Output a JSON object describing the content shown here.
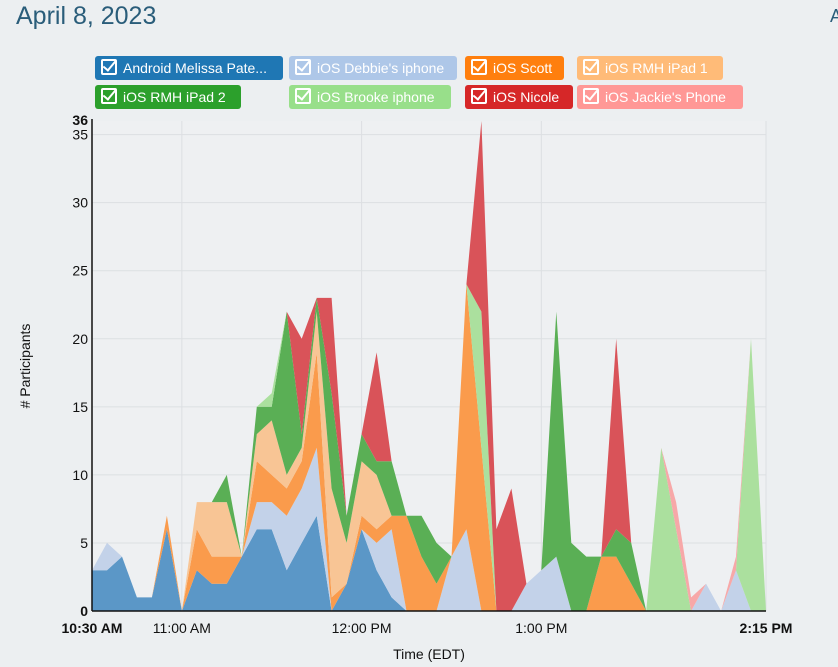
{
  "page": {
    "title": "April 8, 2023",
    "edge_letter": "A"
  },
  "chart_data": {
    "type": "area",
    "stacked": true,
    "xlabel": "Time (EDT)",
    "ylabel": "# Participants",
    "ylim": [
      0,
      36
    ],
    "y_ticks": [
      0,
      5,
      10,
      15,
      20,
      25,
      30,
      35
    ],
    "y_max_label": "36",
    "xlim": [
      "10:30 AM",
      "2:15 PM"
    ],
    "x_ticks": [
      {
        "t": 0,
        "label": "10:30 AM",
        "bold": true
      },
      {
        "t": 30,
        "label": "11:00 AM",
        "bold": false
      },
      {
        "t": 90,
        "label": "12:00 PM",
        "bold": false
      },
      {
        "t": 150,
        "label": "1:00 PM",
        "bold": false
      },
      {
        "t": 225,
        "label": "2:15 PM",
        "bold": true
      }
    ],
    "x_minutes": [
      0,
      5,
      10,
      15,
      20,
      25,
      30,
      35,
      40,
      45,
      50,
      55,
      60,
      65,
      70,
      75,
      80,
      85,
      90,
      95,
      100,
      105,
      110,
      115,
      120,
      125,
      130,
      135,
      140,
      145,
      150,
      155,
      160,
      165,
      170,
      175,
      180,
      185,
      190,
      195,
      200,
      205,
      210,
      215,
      220,
      225
    ],
    "series": [
      {
        "name": "Android Melissa Pate...",
        "color": "#5b97c7",
        "values": [
          3,
          3,
          4,
          1,
          1,
          6,
          0,
          3,
          2,
          2,
          4,
          6,
          6,
          3,
          5,
          7,
          0,
          2,
          6,
          3,
          1,
          0,
          0,
          0,
          0,
          0,
          0,
          0,
          0,
          0,
          0,
          0,
          0,
          0,
          0,
          0,
          0,
          0,
          0,
          0,
          0,
          0,
          0,
          0,
          0,
          0
        ]
      },
      {
        "name": "iOS Debbie's iphone",
        "color": "#c3d2e9",
        "values": [
          0,
          2,
          0,
          0,
          0,
          0,
          0,
          0,
          0,
          0,
          0,
          2,
          2,
          4,
          4,
          5,
          0,
          0,
          0,
          2,
          5,
          0,
          0,
          0,
          4,
          6,
          0,
          0,
          0,
          2,
          3,
          4,
          0,
          0,
          0,
          0,
          0,
          0,
          0,
          0,
          0,
          2,
          0,
          3,
          0,
          0
        ]
      },
      {
        "name": "iOS Scott",
        "color": "#fa9b4c",
        "values": [
          0,
          0,
          0,
          0,
          0,
          1,
          0,
          3,
          2,
          2,
          0,
          3,
          2,
          2,
          2,
          7,
          1,
          0,
          1,
          1,
          1,
          7,
          4,
          2,
          0,
          18,
          12,
          0,
          0,
          0,
          0,
          0,
          0,
          0,
          4,
          4,
          2,
          0,
          0,
          0,
          0,
          0,
          0,
          0,
          0,
          0
        ]
      },
      {
        "name": "iOS RMH iPad 1",
        "color": "#f8c595",
        "values": [
          0,
          0,
          0,
          0,
          0,
          0,
          0,
          2,
          4,
          4,
          0,
          2,
          4,
          1,
          1,
          3,
          8,
          3,
          4,
          4,
          0,
          0,
          0,
          0,
          0,
          0,
          0,
          0,
          0,
          0,
          0,
          0,
          0,
          0,
          0,
          0,
          0,
          0,
          0,
          0,
          0,
          0,
          0,
          0,
          0,
          0
        ]
      },
      {
        "name": "iOS RMH iPad 2",
        "color": "#5aaf55",
        "values": [
          0,
          0,
          0,
          0,
          0,
          0,
          0,
          0,
          0,
          2,
          0,
          2,
          1,
          12,
          1,
          1,
          7,
          2,
          2,
          1,
          4,
          0,
          3,
          3,
          0,
          0,
          0,
          0,
          0,
          0,
          0,
          18,
          5,
          4,
          0,
          2,
          3,
          0,
          0,
          0,
          0,
          0,
          0,
          0,
          0,
          0
        ]
      },
      {
        "name": "iOS Brooke iphone",
        "color": "#abe09e",
        "values": [
          0,
          0,
          0,
          0,
          0,
          0,
          0,
          0,
          0,
          0,
          0,
          0,
          1,
          0,
          0,
          0,
          0,
          0,
          0,
          0,
          0,
          0,
          0,
          0,
          0,
          0,
          10,
          0,
          0,
          0,
          0,
          0,
          0,
          0,
          0,
          0,
          0,
          0,
          12,
          6,
          0,
          0,
          0,
          0,
          20,
          0
        ]
      },
      {
        "name": "iOS Nicole",
        "color": "#d95359",
        "values": [
          0,
          0,
          0,
          0,
          0,
          0,
          0,
          0,
          0,
          0,
          0,
          0,
          0,
          0,
          7,
          0,
          7,
          0,
          0,
          8,
          0,
          0,
          0,
          0,
          0,
          0,
          14,
          6,
          9,
          0,
          0,
          0,
          0,
          0,
          0,
          14,
          0,
          0,
          0,
          0,
          0,
          0,
          0,
          0,
          0,
          0
        ]
      },
      {
        "name": "iOS Jackie's Phone",
        "color": "#f7a8a8",
        "values": [
          0,
          0,
          0,
          0,
          0,
          0,
          0,
          0,
          0,
          0,
          0,
          0,
          0,
          0,
          0,
          0,
          0,
          0,
          0,
          0,
          0,
          0,
          0,
          0,
          0,
          0,
          0,
          0,
          0,
          0,
          0,
          0,
          0,
          0,
          0,
          0,
          0,
          0,
          0,
          2,
          1,
          0,
          0,
          1,
          0,
          0
        ]
      }
    ]
  },
  "legend": {
    "items": [
      {
        "label": "Android Melissa Pate...",
        "color": "#1f77b4"
      },
      {
        "label": "iOS Debbie's iphone",
        "color": "#aec7e8"
      },
      {
        "label": "iOS Scott",
        "color": "#ff7f0e"
      },
      {
        "label": "iOS RMH iPad 1",
        "color": "#ffbb78"
      },
      {
        "label": "iOS RMH iPad 2",
        "color": "#2ca02c"
      },
      {
        "label": "iOS Brooke iphone",
        "color": "#98df8a"
      },
      {
        "label": "iOS Nicole",
        "color": "#d62728"
      },
      {
        "label": "iOS Jackie's Phone",
        "color": "#ff9896"
      }
    ]
  }
}
